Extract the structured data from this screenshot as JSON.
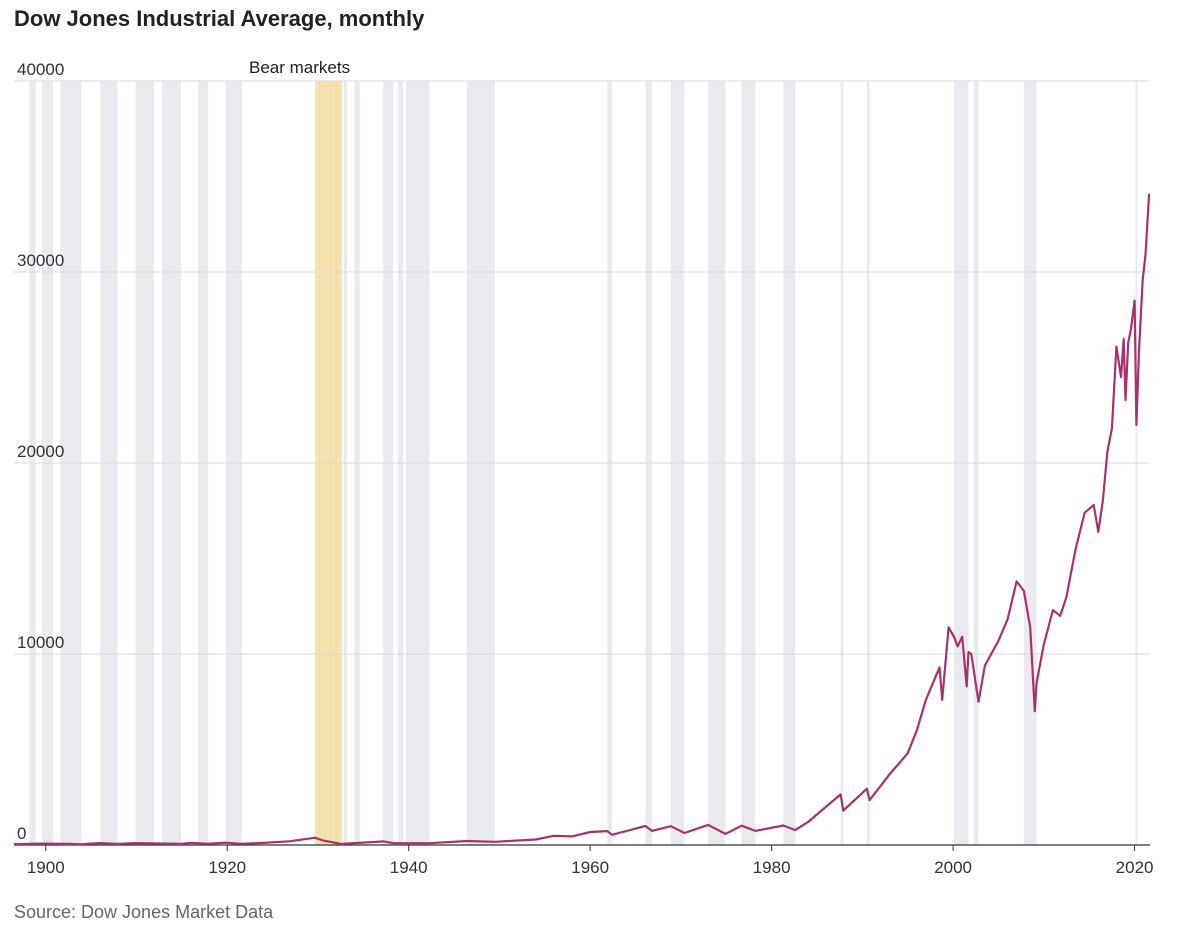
{
  "title": "Dow Jones Industrial Average, monthly",
  "source": "Source: Dow Jones Market Data",
  "annotation": "Bear markets",
  "colors": {
    "line": "#a8326c",
    "bear_band": "#e8eaed",
    "highlight_band": "#f4e2b0",
    "grid": "#d9d9d9",
    "axis": "#333333"
  },
  "chart_data": {
    "type": "line",
    "title": "Dow Jones Industrial Average, monthly",
    "xlabel": "",
    "ylabel": "",
    "xlim": [
      1896.5,
      2021.7
    ],
    "ylim": [
      0,
      40000
    ],
    "x_ticks": [
      1900,
      1920,
      1940,
      1960,
      1980,
      2000,
      2020
    ],
    "y_ticks": [
      0,
      10000,
      20000,
      30000,
      40000
    ],
    "grid": "horizontal",
    "bear_markets": [
      [
        1898.2,
        1898.9
      ],
      [
        1899.6,
        1900.8
      ],
      [
        1901.6,
        1903.9
      ],
      [
        1906.0,
        1907.9
      ],
      [
        1909.9,
        1911.9
      ],
      [
        1912.8,
        1914.9
      ],
      [
        1916.8,
        1917.9
      ],
      [
        1919.8,
        1921.6
      ],
      [
        1929.7,
        1932.6
      ],
      [
        1932.8,
        1933.2
      ],
      [
        1934.0,
        1934.6
      ],
      [
        1937.2,
        1938.3
      ],
      [
        1938.8,
        1939.4
      ],
      [
        1939.7,
        1942.3
      ],
      [
        1946.4,
        1949.5
      ],
      [
        1961.9,
        1962.4
      ],
      [
        1966.1,
        1966.8
      ],
      [
        1968.9,
        1970.4
      ],
      [
        1973.0,
        1974.9
      ],
      [
        1976.7,
        1978.2
      ],
      [
        1981.3,
        1982.6
      ],
      [
        1987.6,
        1987.9
      ],
      [
        1990.5,
        1990.8
      ],
      [
        2000.1,
        2001.7
      ],
      [
        2002.3,
        2002.8
      ],
      [
        2007.8,
        2009.2
      ],
      [
        2020.1,
        2020.3
      ]
    ],
    "highlight_band": [
      1929.7,
      1932.6
    ],
    "series": [
      {
        "x": [
          1896.5,
          1899.3,
          1902.5,
          1903.8,
          1906.0,
          1907.9,
          1909.9,
          1914.9,
          1916.0,
          1917.9,
          1919.8,
          1921.6,
          1924.0,
          1927.0,
          1929.7,
          1930.5,
          1931.5,
          1932.5,
          1934.0,
          1937.2,
          1938.3,
          1942.3,
          1946.4,
          1949.5,
          1954.0,
          1956.0,
          1958.0,
          1960.0,
          1961.9,
          1962.4,
          1966.1,
          1966.8,
          1968.9,
          1970.4,
          1973.0,
          1974.9,
          1976.7,
          1978.2,
          1981.3,
          1982.6,
          1984.0,
          1987.6,
          1987.9,
          1990.5,
          1990.8,
          1993.0,
          1995.0,
          1996.0,
          1997.0,
          1998.5,
          1998.8,
          1999.5,
          2000.1,
          2000.5,
          2001.0,
          2001.5,
          2001.7,
          2002.0,
          2002.8,
          2003.5,
          2005.0,
          2006.0,
          2007.0,
          2007.8,
          2008.5,
          2009.0,
          2009.2,
          2010.0,
          2011.0,
          2011.8,
          2012.5,
          2013.5,
          2014.5,
          2015.5,
          2016.0,
          2016.5,
          2017.0,
          2017.5,
          2018.0,
          2018.5,
          2018.8,
          2019.0,
          2019.3,
          2019.6,
          2020.0,
          2020.2,
          2020.5,
          2020.9,
          2021.2,
          2021.6
        ],
        "y": [
          40,
          75,
          60,
          43,
          100,
          55,
          100,
          55,
          110,
          70,
          120,
          65,
          110,
          200,
          380,
          240,
          150,
          50,
          100,
          190,
          100,
          95,
          210,
          165,
          290,
          480,
          450,
          680,
          730,
          535,
          995,
          740,
          985,
          630,
          1050,
          580,
          1010,
          740,
          1020,
          780,
          1200,
          2650,
          1800,
          2950,
          2350,
          3700,
          4800,
          6000,
          7600,
          9300,
          7600,
          11400,
          10900,
          10400,
          10900,
          8300,
          10100,
          10000,
          7500,
          9400,
          10700,
          11800,
          13800,
          13300,
          11400,
          7000,
          8500,
          10500,
          12300,
          12000,
          13000,
          15500,
          17400,
          17800,
          16400,
          18000,
          20600,
          21800,
          26100,
          24500,
          26500,
          23300,
          26300,
          27000,
          28500,
          22000,
          26000,
          29600,
          30900,
          34100
        ]
      }
    ]
  }
}
